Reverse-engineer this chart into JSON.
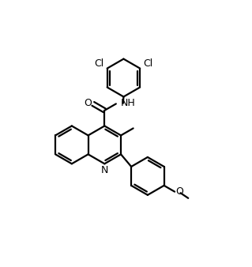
{
  "background_color": "#ffffff",
  "line_color": "#000000",
  "line_width": 1.6,
  "font_size": 9.0,
  "figsize": [
    3.19,
    3.38
  ],
  "dpi": 100,
  "xlim": [
    0.0,
    9.5
  ],
  "ylim": [
    0.5,
    11.0
  ]
}
